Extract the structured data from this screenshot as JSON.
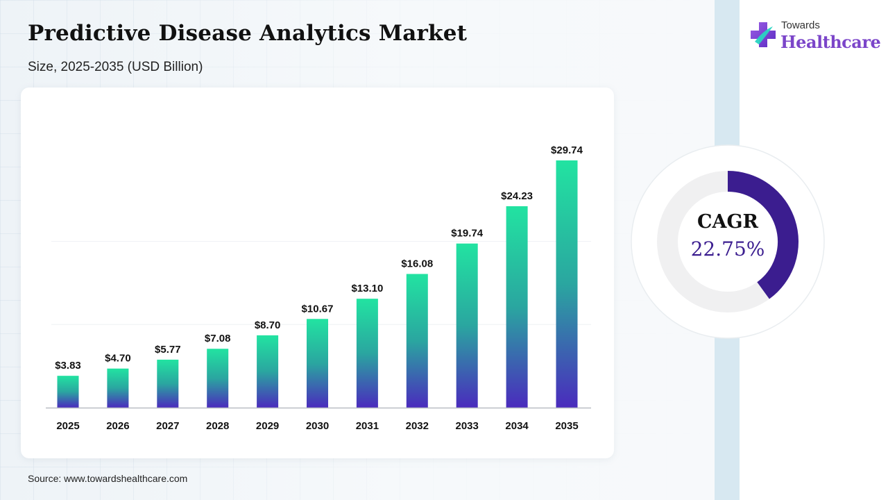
{
  "header": {
    "title": "Predictive Disease Analytics Market",
    "subtitle": "Size, 2025-2035 (USD Billion)"
  },
  "brand": {
    "small": "Towards",
    "big": "Healthcare",
    "color": "#7b45c9"
  },
  "cagr": {
    "label": "CAGR",
    "value": "22.75%",
    "fraction": 0.4,
    "color": "#3b1d8f"
  },
  "source": "Source: www.towardshealthcare.com",
  "chart_data": {
    "type": "bar",
    "categories": [
      "2025",
      "2026",
      "2027",
      "2028",
      "2029",
      "2030",
      "2031",
      "2032",
      "2033",
      "2034",
      "2035"
    ],
    "values": [
      3.83,
      4.7,
      5.77,
      7.08,
      8.7,
      10.67,
      13.1,
      16.08,
      19.74,
      24.23,
      29.74
    ],
    "labels": [
      "$3.83",
      "$4.70",
      "$5.77",
      "$7.08",
      "$8.70",
      "$10.67",
      "$13.10",
      "$16.08",
      "$19.74",
      "$24.23",
      "$29.74"
    ],
    "title": "",
    "xlabel": "",
    "ylabel": "",
    "ylim": [
      0,
      35
    ],
    "grid": true,
    "colors": {
      "top": "#22e3a1",
      "mid": "#2aa6a0",
      "bottom": "#4a2bbd"
    }
  }
}
